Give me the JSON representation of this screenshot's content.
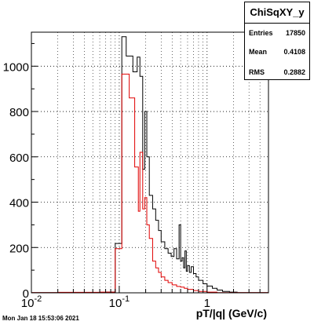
{
  "chart_data": {
    "type": "histogram",
    "stats": {
      "title": "ChiSqXY_y",
      "rows": [
        {
          "label": "Entries",
          "value": "17850"
        },
        {
          "label": "Mean",
          "value": "0.4108"
        },
        {
          "label": "RMS",
          "value": "0.2882"
        }
      ]
    },
    "xlabel": "pT/|q| (GeV/c)",
    "x_scale": "log",
    "xlim": [
      0.01,
      5
    ],
    "ylim": [
      0,
      1150
    ],
    "x_ticks": [
      "10",
      "10",
      "1"
    ],
    "x_tick_exps": [
      "-2",
      "-1",
      ""
    ],
    "y_ticks": [
      "0",
      "200",
      "400",
      "600",
      "800",
      "1000"
    ],
    "y_tick_values": [
      0,
      200,
      400,
      600,
      800,
      1000
    ],
    "grid": true,
    "series": [
      {
        "color": "#000000",
        "bins": [
          [
            0.01,
            0.07,
            1
          ],
          [
            0.07,
            0.09,
            3
          ],
          [
            0.09,
            0.107,
            218
          ],
          [
            0.107,
            0.12,
            1130
          ],
          [
            0.12,
            0.143,
            1045
          ],
          [
            0.143,
            0.16,
            975
          ],
          [
            0.16,
            0.172,
            1040
          ],
          [
            0.172,
            0.185,
            955
          ],
          [
            0.185,
            0.195,
            545
          ],
          [
            0.195,
            0.206,
            800
          ],
          [
            0.206,
            0.22,
            600
          ],
          [
            0.22,
            0.24,
            430
          ],
          [
            0.24,
            0.26,
            370
          ],
          [
            0.26,
            0.28,
            320
          ],
          [
            0.28,
            0.3,
            275
          ],
          [
            0.3,
            0.33,
            225
          ],
          [
            0.33,
            0.36,
            195
          ],
          [
            0.36,
            0.39,
            175
          ],
          [
            0.39,
            0.42,
            160
          ],
          [
            0.42,
            0.45,
            195
          ],
          [
            0.45,
            0.48,
            150
          ],
          [
            0.48,
            0.5,
            300
          ],
          [
            0.5,
            0.52,
            140
          ],
          [
            0.52,
            0.54,
            155
          ],
          [
            0.54,
            0.56,
            110
          ],
          [
            0.56,
            0.58,
            185
          ],
          [
            0.58,
            0.6,
            95
          ],
          [
            0.6,
            0.63,
            120
          ],
          [
            0.63,
            0.66,
            90
          ],
          [
            0.66,
            0.7,
            115
          ],
          [
            0.7,
            0.75,
            85
          ],
          [
            0.75,
            0.8,
            70
          ],
          [
            0.8,
            0.9,
            55
          ],
          [
            0.9,
            1.0,
            40
          ],
          [
            1.0,
            1.15,
            30
          ],
          [
            1.15,
            1.3,
            20
          ],
          [
            1.3,
            1.5,
            12
          ],
          [
            1.5,
            1.8,
            6
          ],
          [
            1.8,
            2.2,
            3
          ],
          [
            2.2,
            5.0,
            1
          ]
        ]
      },
      {
        "color": "#e00000",
        "bins": [
          [
            0.01,
            0.02,
            1
          ],
          [
            0.02,
            0.06,
            2
          ],
          [
            0.06,
            0.09,
            3
          ],
          [
            0.09,
            0.107,
            195
          ],
          [
            0.107,
            0.13,
            965
          ],
          [
            0.13,
            0.15,
            860
          ],
          [
            0.15,
            0.165,
            555
          ],
          [
            0.165,
            0.172,
            360
          ],
          [
            0.172,
            0.185,
            620
          ],
          [
            0.185,
            0.195,
            370
          ],
          [
            0.195,
            0.206,
            420
          ],
          [
            0.206,
            0.22,
            300
          ],
          [
            0.22,
            0.24,
            240
          ],
          [
            0.24,
            0.26,
            140
          ],
          [
            0.26,
            0.28,
            110
          ],
          [
            0.28,
            0.3,
            90
          ],
          [
            0.3,
            0.33,
            70
          ],
          [
            0.33,
            0.36,
            55
          ],
          [
            0.36,
            0.4,
            45
          ],
          [
            0.4,
            0.45,
            35
          ],
          [
            0.45,
            0.5,
            28
          ],
          [
            0.5,
            0.55,
            25
          ],
          [
            0.55,
            0.6,
            20
          ],
          [
            0.6,
            0.7,
            15
          ],
          [
            0.7,
            0.8,
            10
          ],
          [
            0.8,
            1.0,
            6
          ],
          [
            1.0,
            1.3,
            3
          ],
          [
            1.3,
            5.0,
            1
          ]
        ]
      }
    ]
  },
  "timestamp": "Mon Jan 18 15:53:06 2021"
}
